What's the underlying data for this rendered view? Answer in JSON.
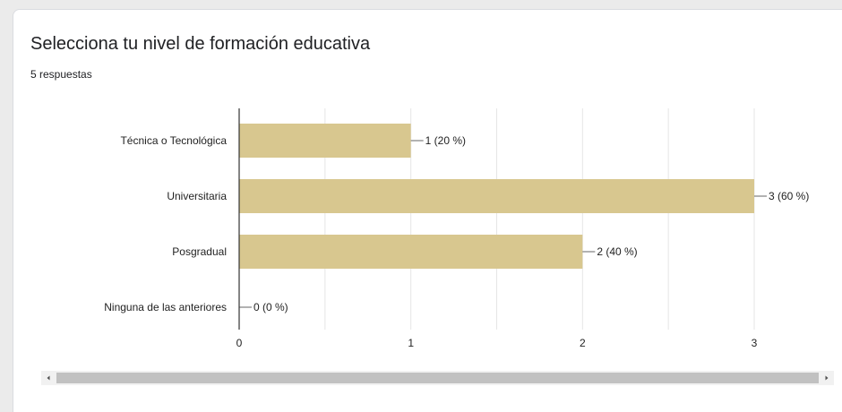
{
  "card": {
    "title": "Selecciona tu nivel de formación educativa",
    "subtitle": "5 respuestas"
  },
  "colors": {
    "bar": "#d8c78f",
    "grid": "#e6e6e6",
    "axis": "#333333",
    "text": "#222222"
  },
  "chart_data": {
    "type": "bar",
    "orientation": "horizontal",
    "categories": [
      "Técnica o Tecnológica",
      "Universitaria",
      "Posgradual",
      "Ninguna de las anteriores"
    ],
    "values": [
      1,
      3,
      2,
      0
    ],
    "data_labels": [
      "1 (20 %)",
      "3 (60 %)",
      "2 (40 %)",
      "0 (0 %)"
    ],
    "xticks": [
      0,
      1,
      2,
      3
    ],
    "xlim": [
      0,
      3
    ],
    "grid": true
  }
}
